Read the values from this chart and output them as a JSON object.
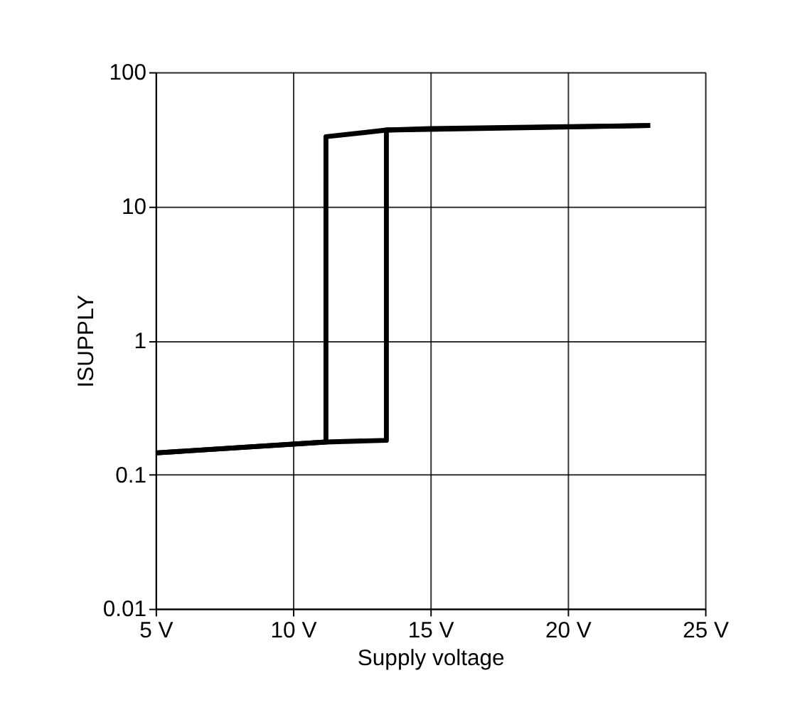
{
  "chart_data": {
    "type": "line",
    "xlabel": "Supply voltage",
    "ylabel": "ISUPPLY",
    "log": "y",
    "grid": true,
    "marker": "none",
    "line_style": "solid",
    "xlim": [
      5,
      25
    ],
    "ylim": [
      0.01,
      100
    ],
    "xticks": [
      {
        "value": 5,
        "label": "5 V"
      },
      {
        "value": 10,
        "label": "10 V"
      },
      {
        "value": 15,
        "label": "15 V"
      },
      {
        "value": 20,
        "label": "20 V"
      },
      {
        "value": 25,
        "label": "25 V"
      }
    ],
    "yticks": [
      0.01,
      0.1,
      1,
      10,
      100
    ],
    "series": [
      {
        "color": "#000000",
        "x": [
          5,
          11.2,
          13.4,
          13.4,
          15,
          23
        ],
        "values": [
          0.145,
          0.175,
          0.18,
          37,
          38,
          40
        ]
      },
      {
        "color": "#000000",
        "x": [
          23,
          13.4,
          11.2,
          11.2,
          5
        ],
        "values": [
          40,
          37,
          33,
          0.175,
          0.145
        ]
      }
    ]
  }
}
